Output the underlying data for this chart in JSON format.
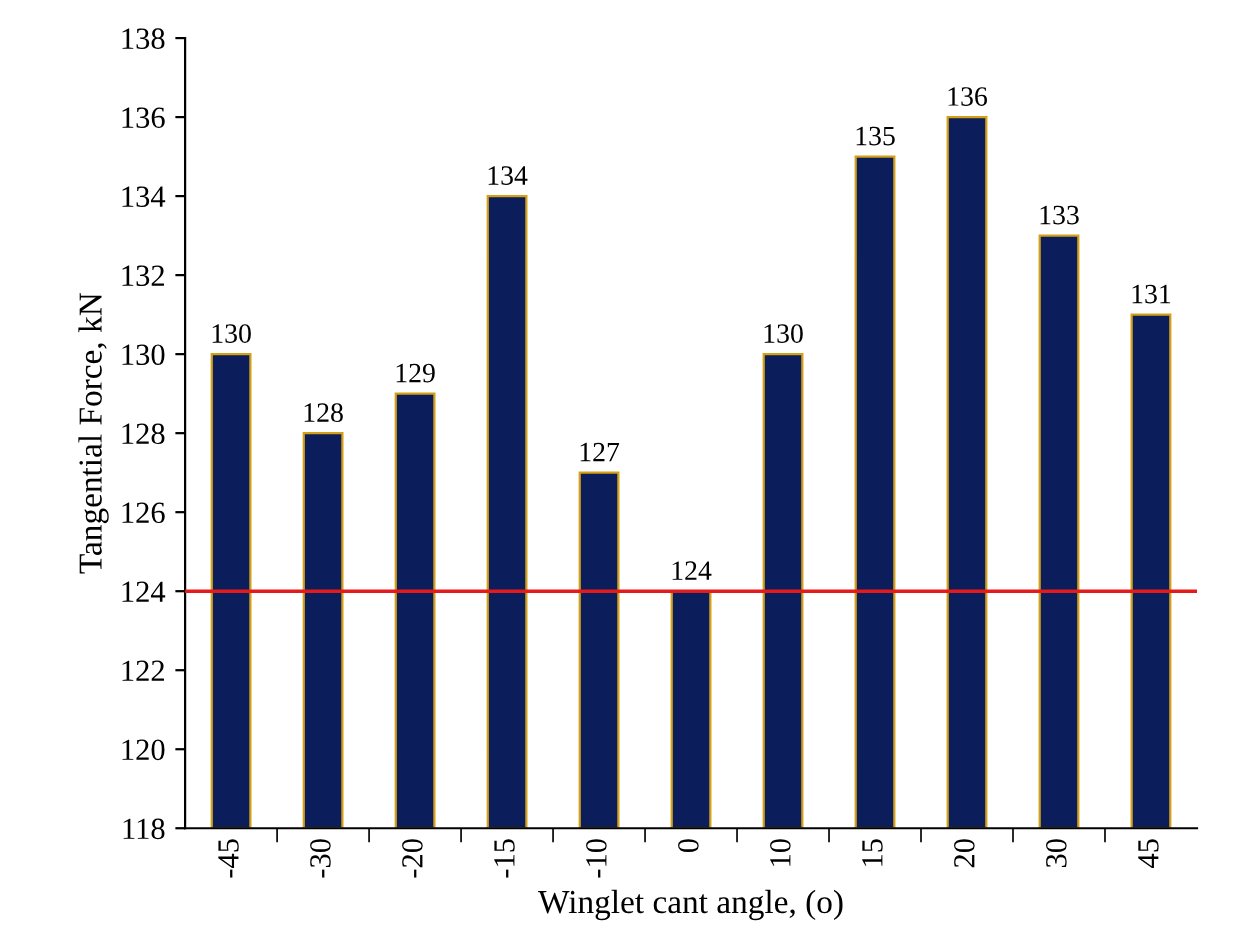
{
  "chart_data": {
    "type": "bar",
    "xlabel": "Winglet cant angle, (o)",
    "ylabel": "Tangential Force, kN",
    "categories": [
      "-45",
      "-30",
      "-20",
      "-15",
      "-10",
      "0",
      "10",
      "15",
      "20",
      "30",
      "45"
    ],
    "values": [
      130,
      128,
      129,
      134,
      127,
      124,
      130,
      135,
      136,
      133,
      131
    ],
    "color": "#0b1d5a",
    "ylim": [
      118,
      138
    ],
    "yticks": [
      118,
      120,
      122,
      124,
      126,
      128,
      130,
      132,
      134,
      136,
      138
    ],
    "data_labels": true,
    "grid": false,
    "legend": false,
    "ref_lines": [
      {
        "axis": "y",
        "value": 124,
        "color": "#e41a1c",
        "line_style": "solid"
      }
    ]
  }
}
